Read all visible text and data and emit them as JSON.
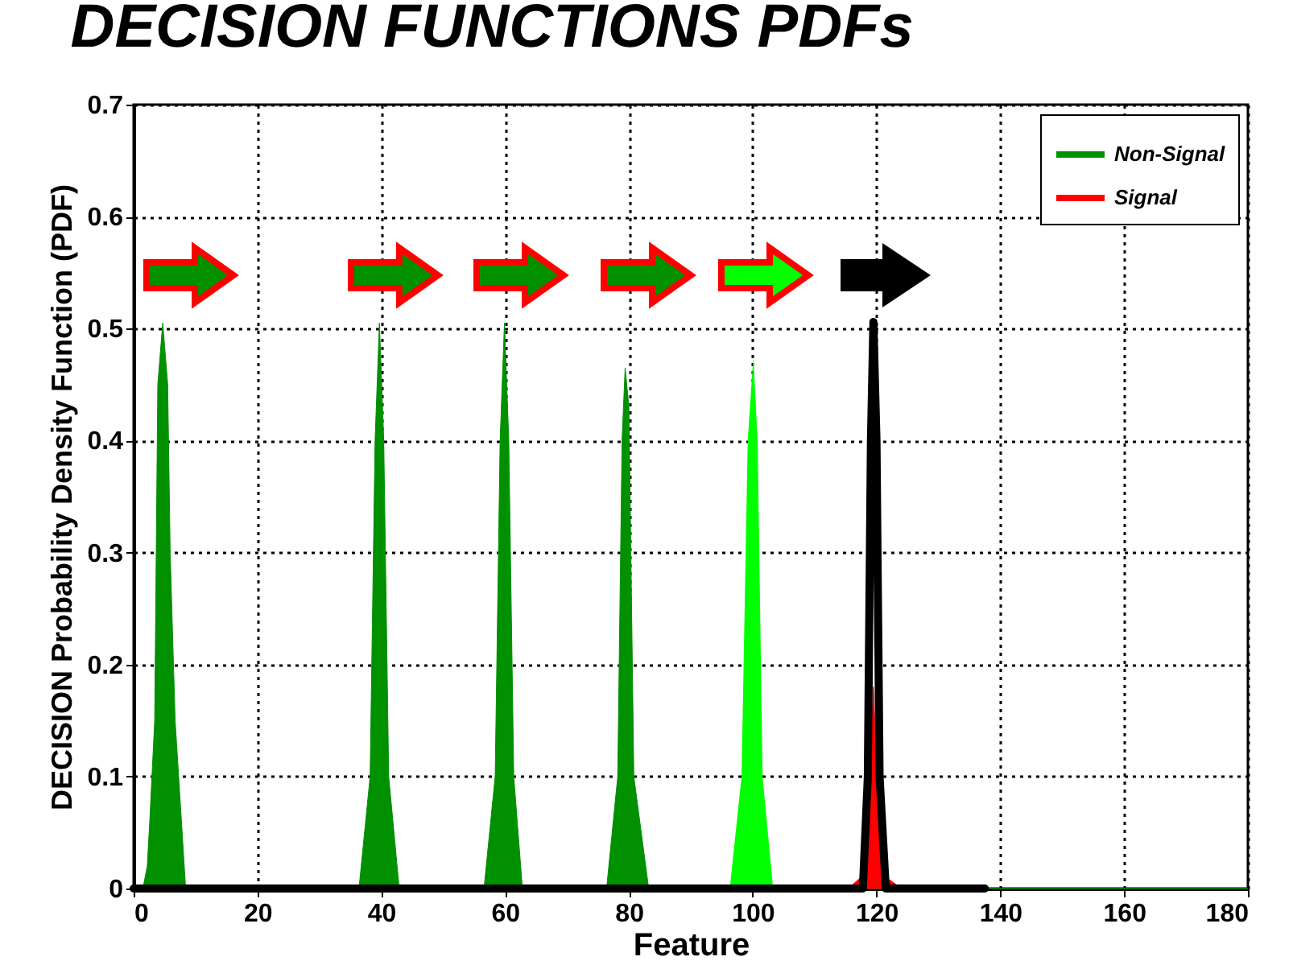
{
  "chart_data": {
    "type": "area",
    "title": "DECISION FUNCTIONS PDFs",
    "xlabel": "Feature",
    "ylabel": "DECISION Probability Density Function (PDF)",
    "xlim": [
      0,
      180
    ],
    "xticks": [
      0,
      20,
      40,
      60,
      80,
      100,
      120,
      140,
      160,
      180
    ],
    "ylim": [
      0,
      0.7
    ],
    "yticks": [
      0,
      0.1,
      0.2,
      0.3,
      0.4,
      0.5,
      0.6,
      0.7
    ],
    "grid": true,
    "legend": "top right",
    "series": [
      {
        "name": "Non-Signal",
        "color": "#009000",
        "x": [
          0,
          1.5,
          2.2,
          2.6,
          3.4,
          3.9,
          4.7,
          5.5,
          5.9,
          6.7,
          8.4,
          36.4,
          38.2,
          39,
          39.7,
          40.4,
          41.2,
          42.9,
          56.6,
          58.4,
          59.2,
          59.9,
          60.6,
          61.4,
          62.8,
          76.4,
          78.2,
          78.9,
          79.4,
          80,
          80.8,
          83.2,
          180
        ],
        "values": [
          0,
          0,
          0.02,
          0.06,
          0.15,
          0.45,
          0.505,
          0.45,
          0.3,
          0.15,
          0,
          0,
          0.1,
          0.4,
          0.505,
          0.4,
          0.1,
          0,
          0,
          0.1,
          0.4,
          0.505,
          0.4,
          0.1,
          0,
          0,
          0.1,
          0.4,
          0.465,
          0.43,
          0.1,
          0,
          0
        ]
      },
      {
        "color": "#00ff00",
        "x": [
          96.3,
          98.2,
          99.2,
          100.1,
          100.8,
          101.6,
          103.3
        ],
        "values": [
          0,
          0.1,
          0.4,
          0.475,
          0.4,
          0.1,
          0
        ]
      },
      {
        "name": "Signal",
        "color": "#ff0000",
        "x": [
          115.4,
          117.5,
          118.6,
          119.5,
          120.4,
          121.5,
          124.1
        ],
        "values": [
          0,
          0.01,
          0.06,
          0.18,
          0.06,
          0.01,
          0
        ]
      },
      {
        "type": "line",
        "color": "#000000",
        "x": [
          0,
          117.8,
          118.6,
          119.1,
          119.5,
          120,
          120.5,
          121.5,
          137.5
        ],
        "values": [
          0,
          0,
          0.1,
          0.4,
          0.506,
          0.4,
          0.1,
          0,
          0
        ]
      }
    ]
  }
}
